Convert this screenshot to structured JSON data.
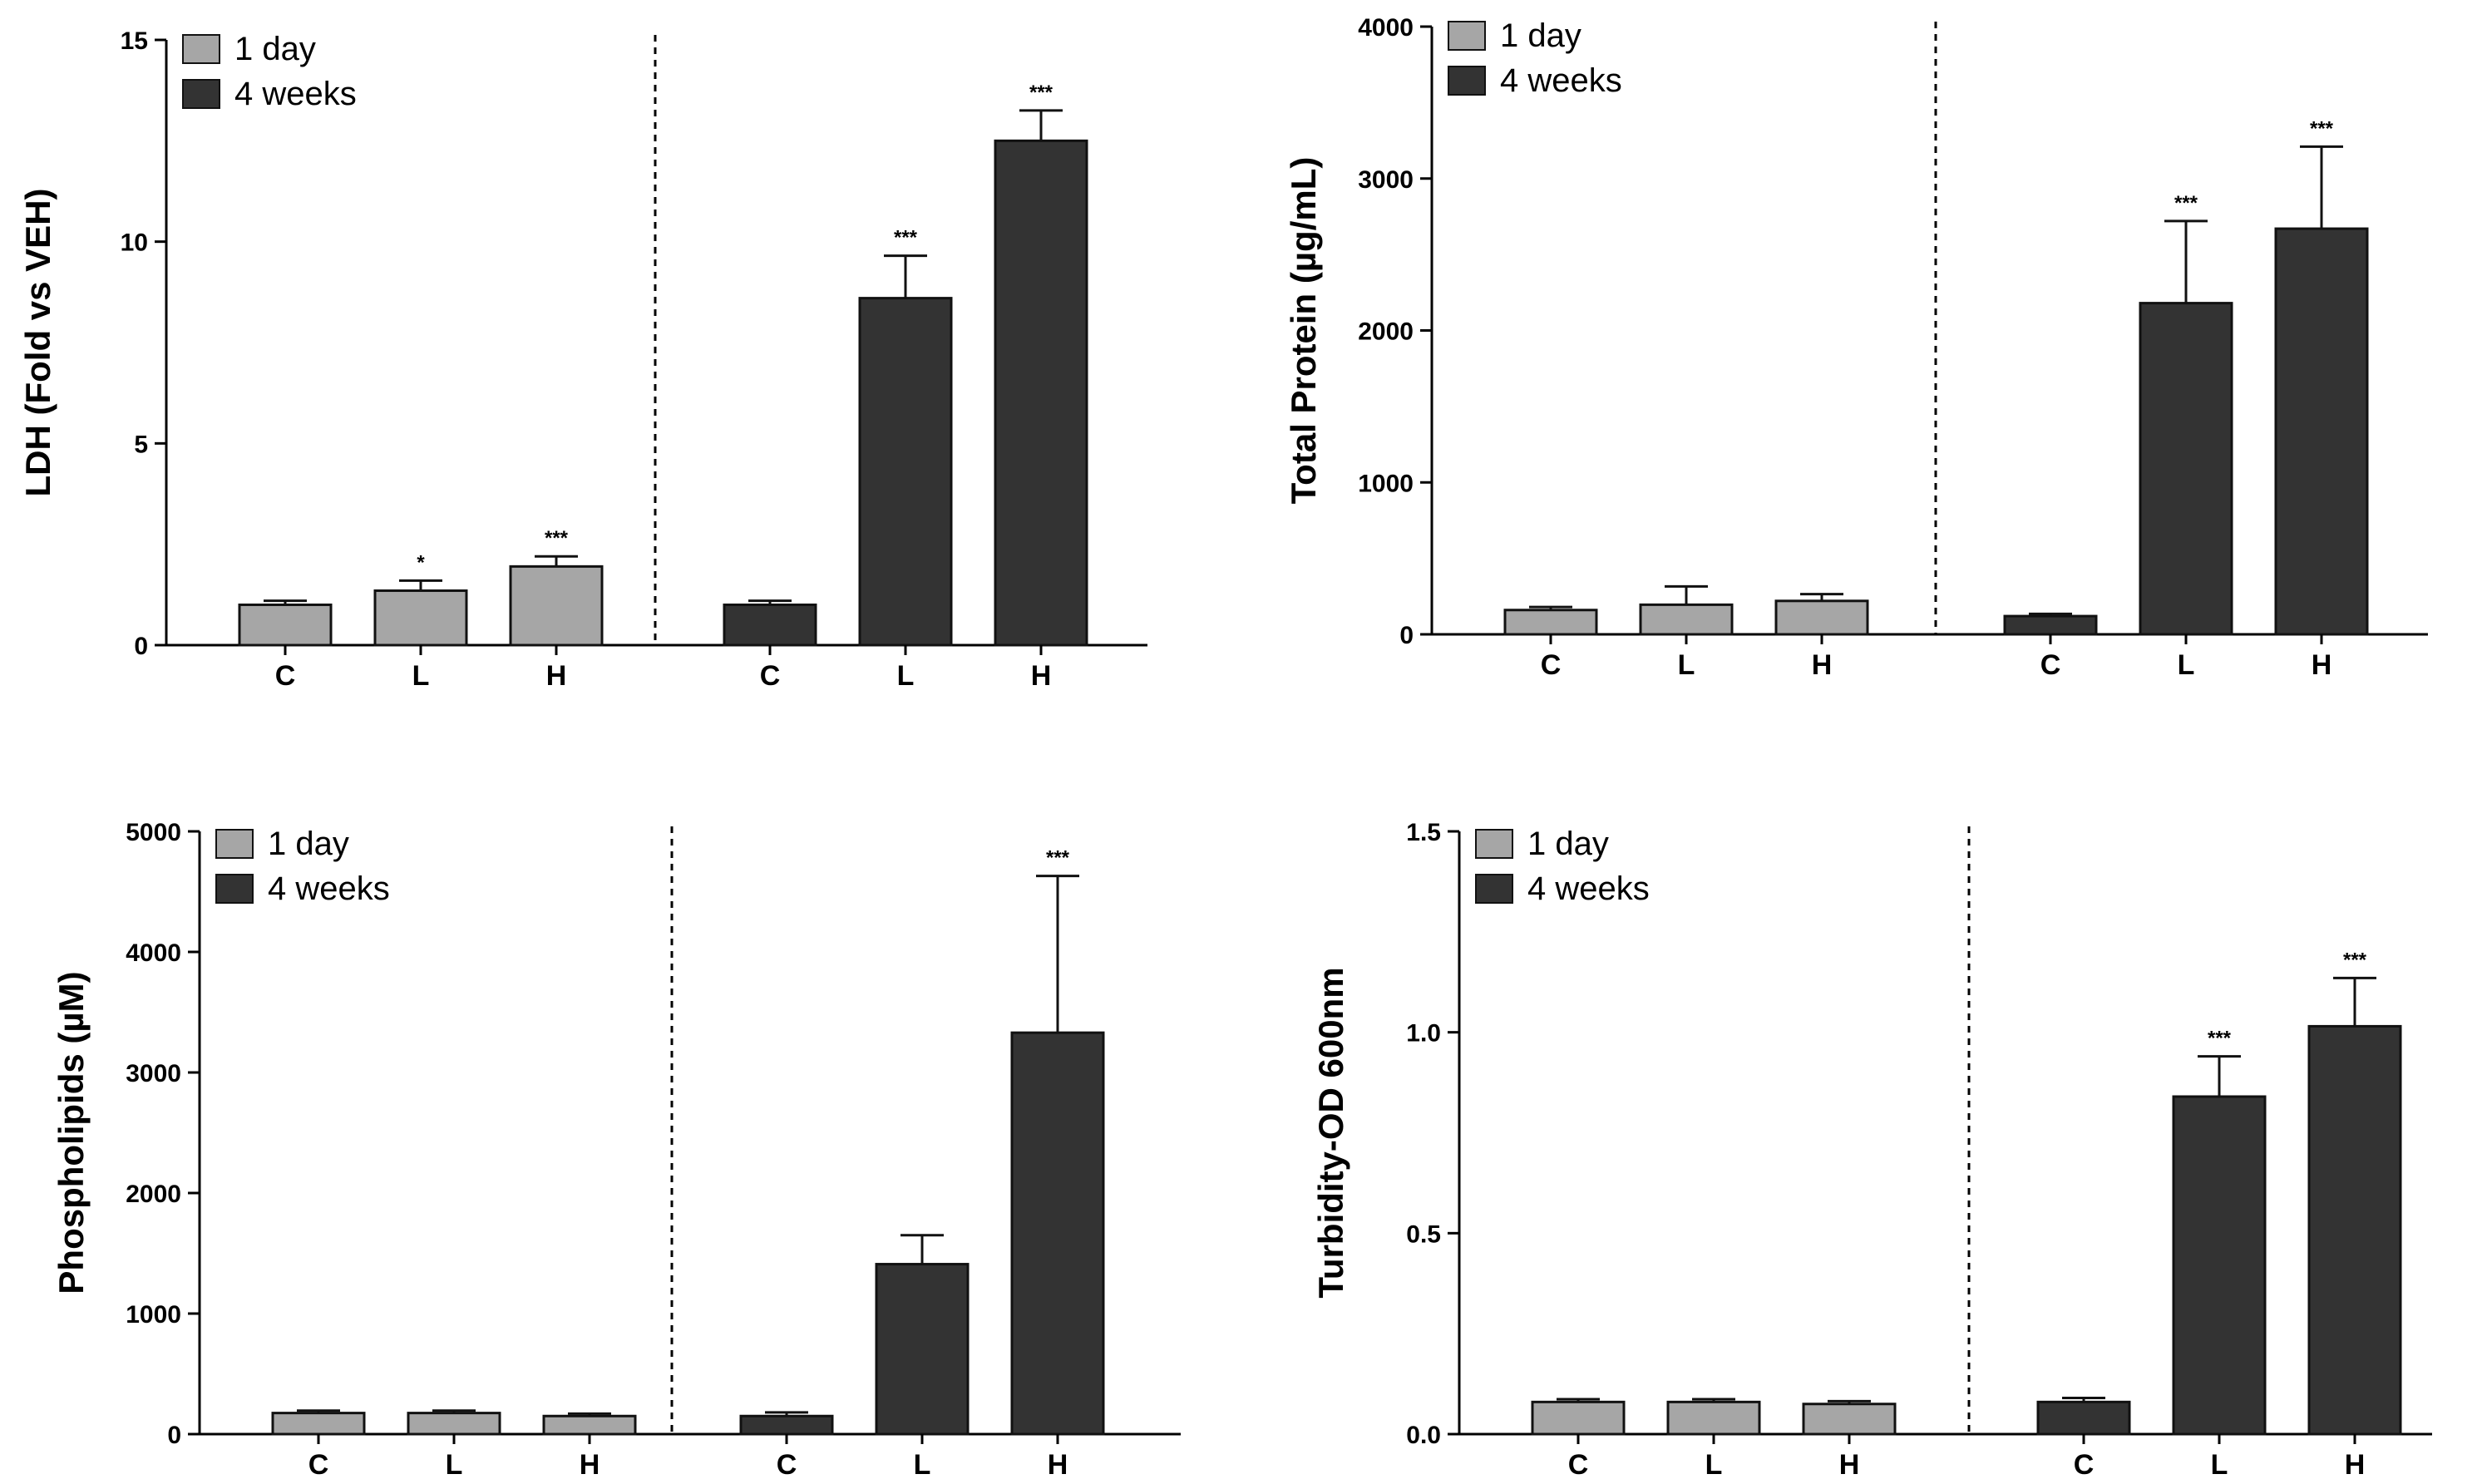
{
  "colors": {
    "day1": "#a6a6a6",
    "weeks4": "#333333",
    "axis": "#000000",
    "bar_edge": "#111111"
  },
  "legend": {
    "day1": "1 day",
    "weeks4": "4 weeks"
  },
  "chart_data": [
    {
      "type": "bar",
      "title": "",
      "ylabel": "LDH  (Fold vs VEH)",
      "xlabel": "",
      "ylim": [
        0,
        15
      ],
      "yticks": [
        0,
        5,
        10,
        15
      ],
      "ytick_labels": [
        "0",
        "5",
        "10",
        "15"
      ],
      "groups": [
        {
          "name": "1 day",
          "categories": [
            "C",
            "L",
            "H"
          ],
          "values": [
            1.0,
            1.35,
            1.95
          ],
          "errors": [
            0.1,
            0.25,
            0.25
          ],
          "significance": [
            "",
            "*",
            "***"
          ]
        },
        {
          "name": "4 weeks",
          "categories": [
            "C",
            "L",
            "H"
          ],
          "values": [
            1.0,
            8.6,
            12.5
          ],
          "errors": [
            0.1,
            1.05,
            0.75
          ],
          "significance": [
            "",
            "***",
            "***"
          ]
        }
      ]
    },
    {
      "type": "bar",
      "title": "",
      "ylabel": "Total Protein (µg/mL)",
      "xlabel": "",
      "ylim": [
        0,
        4000
      ],
      "yticks": [
        0,
        1000,
        2000,
        3000,
        4000
      ],
      "ytick_labels": [
        "0",
        "1000",
        "2000",
        "3000",
        "4000"
      ],
      "groups": [
        {
          "name": "1 day",
          "categories": [
            "C",
            "L",
            "H"
          ],
          "values": [
            160,
            195,
            220
          ],
          "errors": [
            20,
            120,
            45
          ],
          "significance": [
            "",
            "",
            ""
          ]
        },
        {
          "name": "4 weeks",
          "categories": [
            "C",
            "L",
            "H"
          ],
          "values": [
            120,
            2180,
            2670
          ],
          "errors": [
            15,
            540,
            540
          ],
          "significance": [
            "",
            "***",
            "***"
          ]
        }
      ]
    },
    {
      "type": "bar",
      "title": "",
      "ylabel": "Phospholipids (µM)",
      "xlabel": "",
      "ylim": [
        0,
        5000
      ],
      "yticks": [
        0,
        1000,
        2000,
        3000,
        4000,
        5000
      ],
      "ytick_labels": [
        "0",
        "1000",
        "2000",
        "3000",
        "4000",
        "5000"
      ],
      "groups": [
        {
          "name": "1 day",
          "categories": [
            "C",
            "L",
            "H"
          ],
          "values": [
            175,
            175,
            150
          ],
          "errors": [
            20,
            20,
            20
          ],
          "significance": [
            "",
            "",
            ""
          ]
        },
        {
          "name": "4 weeks",
          "categories": [
            "C",
            "L",
            "H"
          ],
          "values": [
            150,
            1410,
            3330
          ],
          "errors": [
            30,
            240,
            1300
          ],
          "significance": [
            "",
            "",
            "***"
          ]
        }
      ]
    },
    {
      "type": "bar",
      "title": "",
      "ylabel": "Turbidity-OD 600nm",
      "xlabel": "",
      "ylim": [
        0,
        1.5
      ],
      "yticks": [
        0,
        0.5,
        1.0,
        1.5
      ],
      "ytick_labels": [
        "0.0",
        "0.5",
        "1.0",
        "1.5"
      ],
      "groups": [
        {
          "name": "1 day",
          "categories": [
            "C",
            "L",
            "H"
          ],
          "values": [
            0.08,
            0.08,
            0.075
          ],
          "errors": [
            0.007,
            0.007,
            0.007
          ],
          "significance": [
            "",
            "",
            ""
          ]
        },
        {
          "name": "4 weeks",
          "categories": [
            "C",
            "L",
            "H"
          ],
          "values": [
            0.08,
            0.84,
            1.015
          ],
          "errors": [
            0.01,
            0.1,
            0.12
          ],
          "significance": [
            "",
            "***",
            "***"
          ]
        }
      ]
    }
  ]
}
